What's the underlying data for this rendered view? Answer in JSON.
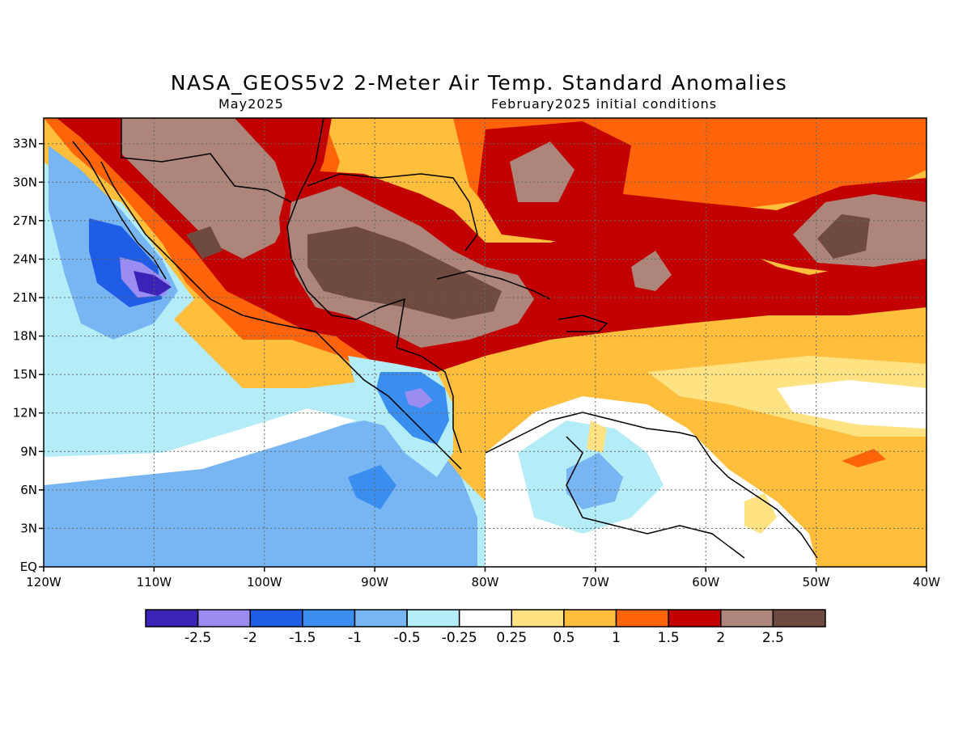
{
  "header": {
    "title": "NASA_GEOS5v2 2-Meter Air Temp. Standard Anomalies",
    "valid_month": "May2025",
    "init_conditions": "February2025 initial conditions"
  },
  "map": {
    "lon_range": [
      -120,
      -40
    ],
    "lat_range": [
      0,
      35
    ],
    "lon_ticks": [
      "120W",
      "110W",
      "100W",
      "90W",
      "80W",
      "70W",
      "60W",
      "50W",
      "40W"
    ],
    "lat_ticks": [
      "EQ",
      "3N",
      "6N",
      "9N",
      "12N",
      "15N",
      "18N",
      "21N",
      "24N",
      "27N",
      "30N",
      "33N"
    ],
    "gridlines": "dotted"
  },
  "colorbar": {
    "labels": [
      "-2.5",
      "-2",
      "-1.5",
      "-1",
      "-0.5",
      "-0.25",
      "0.25",
      "0.5",
      "1",
      "1.5",
      "2",
      "2.5"
    ],
    "colors": [
      "#3d22b8",
      "#9b8cf2",
      "#1f5de6",
      "#3a8ef0",
      "#78b6f3",
      "#b4ecf8",
      "#ffffff",
      "#ffe383",
      "#ffbe3c",
      "#ff640a",
      "#c30000",
      "#ad857b",
      "#6e4a40"
    ]
  }
}
